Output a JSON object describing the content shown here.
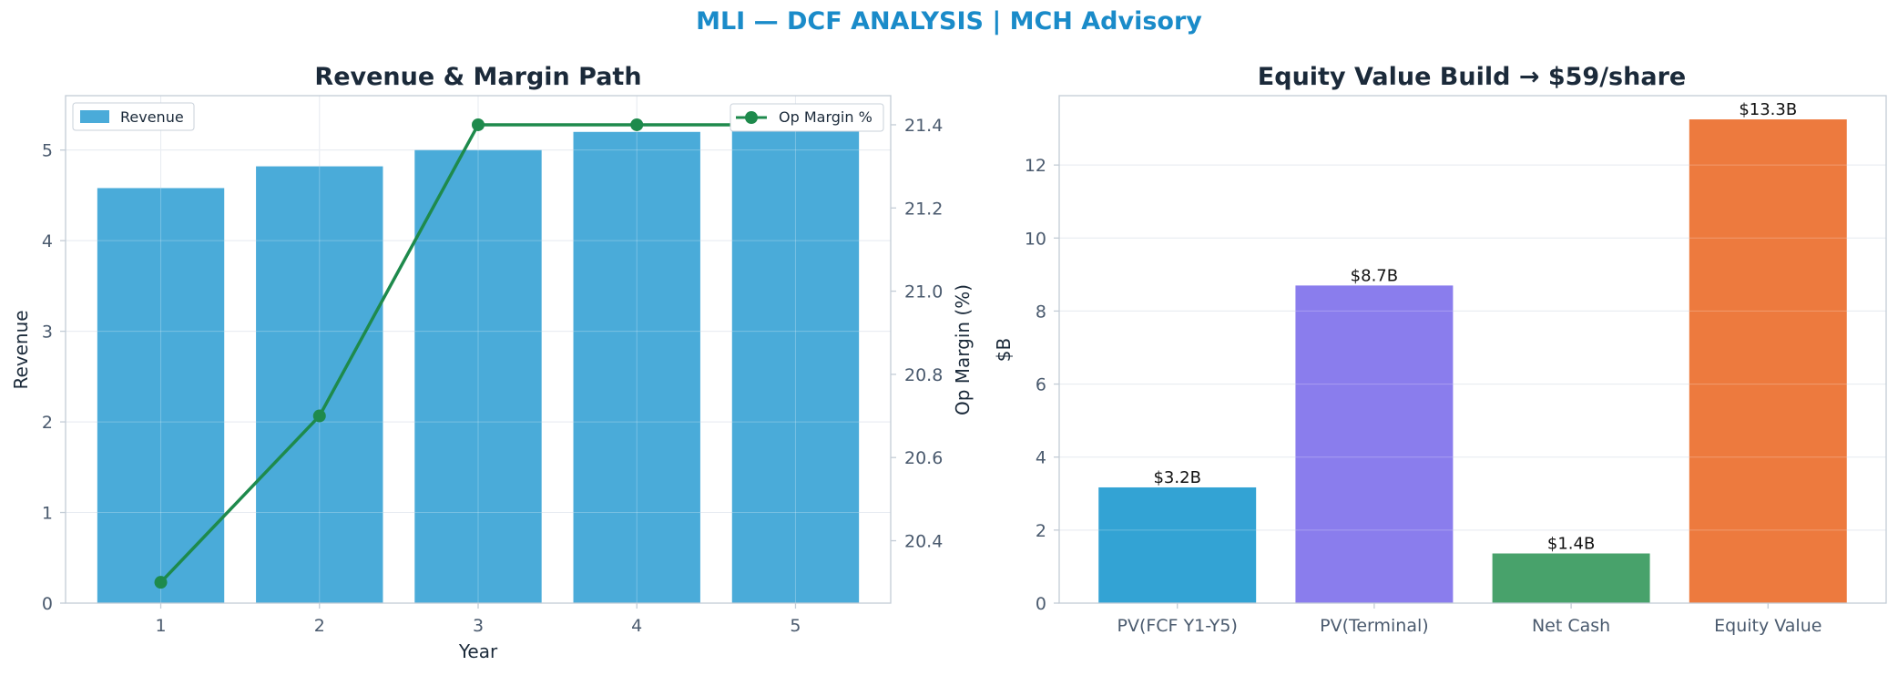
{
  "suptitle": "MLI — DCF ANALYSIS | MCH Advisory",
  "chart_data": [
    {
      "type": "bar",
      "title": "Revenue & Margin Path",
      "xlabel": "Year",
      "ylabel": "Revenue",
      "ylabel_right": "Op Margin (%)",
      "categories": [
        "1",
        "2",
        "3",
        "4",
        "5"
      ],
      "series": [
        {
          "name": "Revenue",
          "type": "bar",
          "axis": "left",
          "color": "#4aabd9",
          "values": [
            4.58,
            4.82,
            5.0,
            5.2,
            5.38
          ]
        },
        {
          "name": "Op Margin %",
          "type": "line",
          "axis": "right",
          "color": "#1e8a4c",
          "values": [
            20.3,
            20.7,
            21.4,
            21.4,
            21.4
          ]
        }
      ],
      "ylim": [
        0,
        5.6
      ],
      "yticks": [
        0,
        1,
        2,
        3,
        4,
        5
      ],
      "ylim_right": [
        20.25,
        21.47
      ],
      "yticks_right": [
        20.4,
        20.6,
        20.8,
        21.0,
        21.2,
        21.4
      ],
      "grid": true,
      "legend_left": "upper-left",
      "legend_right": "upper-right"
    },
    {
      "type": "bar",
      "title": "Equity Value Build → $59/share",
      "xlabel": "",
      "ylabel": "$B",
      "categories": [
        "PV(FCF Y1-Y5)",
        "PV(Terminal)",
        "Net Cash",
        "Equity Value"
      ],
      "values": [
        3.17,
        8.7,
        1.36,
        13.25
      ],
      "data_labels": [
        "$3.2B",
        "$8.7B",
        "$1.4B",
        "$13.3B"
      ],
      "colors": [
        "#33a3d4",
        "#8a7ded",
        "#48a26b",
        "#ed7a3e"
      ],
      "ylim": [
        0,
        13.9
      ],
      "yticks": [
        0,
        2,
        4,
        6,
        8,
        10,
        12
      ],
      "grid": true
    }
  ]
}
